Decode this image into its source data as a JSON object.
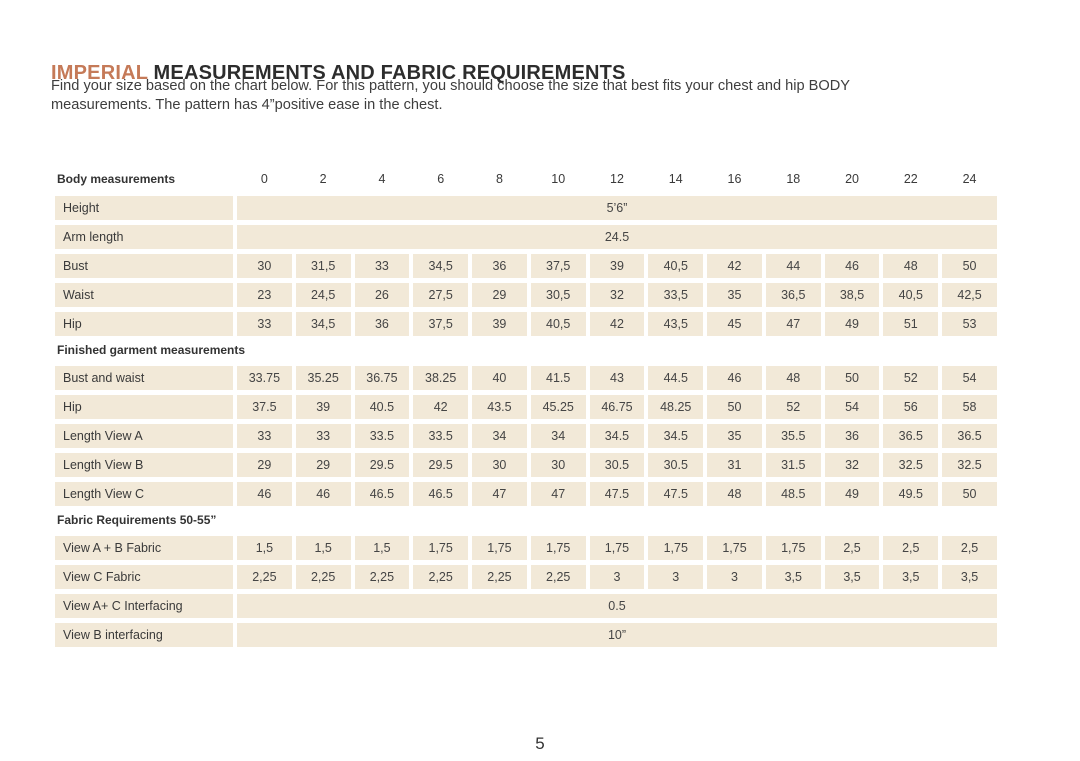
{
  "page": {
    "title_highlight": "IMPERIAL",
    "title_rest": " MEASUREMENTS AND FABRIC REQUIREMENTS",
    "intro_line1": "Find your size based on the chart below. For this pattern, you should choose the size that best fits your chest and hip BODY",
    "intro_line2": "measurements. The pattern has 4”positive ease in the chest.",
    "page_number": "5"
  },
  "colors": {
    "accent": "#c57a58",
    "cell_background": "#f2e9d8",
    "text": "#3e3e3e"
  },
  "table": {
    "header_label": "Body measurements",
    "sizes": [
      "0",
      "2",
      "4",
      "6",
      "8",
      "10",
      "12",
      "14",
      "16",
      "18",
      "20",
      "22",
      "24"
    ],
    "rows": [
      {
        "type": "span",
        "label": "Height",
        "value": "5’6”"
      },
      {
        "type": "span",
        "label": "Arm length",
        "value": "24.5"
      },
      {
        "type": "cells",
        "label": "Bust",
        "values": [
          "30",
          "31,5",
          "33",
          "34,5",
          "36",
          "37,5",
          "39",
          "40,5",
          "42",
          "44",
          "46",
          "48",
          "50"
        ]
      },
      {
        "type": "cells",
        "label": "Waist",
        "values": [
          "23",
          "24,5",
          "26",
          "27,5",
          "29",
          "30,5",
          "32",
          "33,5",
          "35",
          "36,5",
          "38,5",
          "40,5",
          "42,5"
        ]
      },
      {
        "type": "cells",
        "label": "Hip",
        "values": [
          "33",
          "34,5",
          "36",
          "37,5",
          "39",
          "40,5",
          "42",
          "43,5",
          "45",
          "47",
          "49",
          "51",
          "53"
        ]
      },
      {
        "type": "section",
        "label": "Finished garment measurements"
      },
      {
        "type": "cells",
        "label": "Bust and waist",
        "values": [
          "33.75",
          "35.25",
          "36.75",
          "38.25",
          "40",
          "41.5",
          "43",
          "44.5",
          "46",
          "48",
          "50",
          "52",
          "54"
        ]
      },
      {
        "type": "cells",
        "label": "Hip",
        "values": [
          "37.5",
          "39",
          "40.5",
          "42",
          "43.5",
          "45.25",
          "46.75",
          "48.25",
          "50",
          "52",
          "54",
          "56",
          "58"
        ]
      },
      {
        "type": "cells",
        "label": "Length View A",
        "values": [
          "33",
          "33",
          "33.5",
          "33.5",
          "34",
          "34",
          "34.5",
          "34.5",
          "35",
          "35.5",
          "36",
          "36.5",
          "36.5"
        ]
      },
      {
        "type": "cells",
        "label": "Length View B",
        "values": [
          "29",
          "29",
          "29.5",
          "29.5",
          "30",
          "30",
          "30.5",
          "30.5",
          "31",
          "31.5",
          "32",
          "32.5",
          "32.5"
        ]
      },
      {
        "type": "cells",
        "label": "Length View C",
        "values": [
          "46",
          "46",
          "46.5",
          "46.5",
          "47",
          "47",
          "47.5",
          "47.5",
          "48",
          "48.5",
          "49",
          "49.5",
          "50"
        ]
      },
      {
        "type": "section",
        "label": "Fabric Requirements  50-55”"
      },
      {
        "type": "cells",
        "label": "View A + B Fabric",
        "values": [
          "1,5",
          "1,5",
          "1,5",
          "1,75",
          "1,75",
          "1,75",
          "1,75",
          "1,75",
          "1,75",
          "1,75",
          "2,5",
          "2,5",
          "2,5"
        ]
      },
      {
        "type": "cells",
        "label": "View C Fabric",
        "values": [
          "2,25",
          "2,25",
          "2,25",
          "2,25",
          "2,25",
          "2,25",
          "3",
          "3",
          "3",
          "3,5",
          "3,5",
          "3,5",
          "3,5"
        ]
      },
      {
        "type": "span",
        "label": "View A+ C Interfacing",
        "value": "0.5"
      },
      {
        "type": "span",
        "label": "View B interfacing",
        "value": "10”"
      }
    ]
  }
}
